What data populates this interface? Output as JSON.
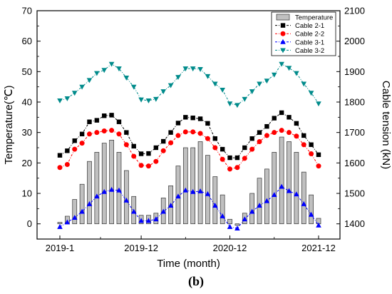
{
  "chart_data": {
    "type": "bar+line",
    "xlabel": "Time (month)",
    "ylabel_left": "Temperature(℃)",
    "ylabel_right": "Cable tension (kN)",
    "ylim_left": [
      -5,
      70
    ],
    "ylim_right": [
      1350,
      2100
    ],
    "yticks_left": [
      0,
      10,
      20,
      30,
      40,
      50,
      60,
      70
    ],
    "yticks_right": [
      1400,
      1500,
      1600,
      1700,
      1800,
      1900,
      2000,
      2100
    ],
    "x_tick_labels": [
      "2019-1",
      "2019-12",
      "2020-12",
      "2021-12"
    ],
    "months": [
      "2019-1",
      "2019-2",
      "2019-3",
      "2019-4",
      "2019-5",
      "2019-6",
      "2019-7",
      "2019-8",
      "2019-9",
      "2019-10",
      "2019-11",
      "2019-12",
      "2020-1",
      "2020-2",
      "2020-3",
      "2020-4",
      "2020-5",
      "2020-6",
      "2020-7",
      "2020-8",
      "2020-9",
      "2020-10",
      "2020-11",
      "2020-12",
      "2021-1",
      "2021-2",
      "2021-3",
      "2021-4",
      "2021-5",
      "2021-6",
      "2021-7",
      "2021-8",
      "2021-9",
      "2021-10",
      "2021-11",
      "2021-12"
    ],
    "legend": [
      "Temperature",
      "Cable 2-1",
      "Cable 2-2",
      "Cable 3-1",
      "Cable 3-2"
    ],
    "legend_position": "top-right",
    "temperature": {
      "name": "Temperature",
      "color": "#c0c0c0",
      "values": [
        0.5,
        2.5,
        8,
        13,
        20.5,
        23.5,
        26.5,
        27.5,
        23.5,
        17.5,
        9,
        2.8,
        2.8,
        3.5,
        8.5,
        12.5,
        19,
        25,
        25,
        27,
        22.5,
        15.5,
        9.5,
        1.5,
        -0.5,
        3.5,
        10,
        15,
        18,
        23.5,
        28.5,
        27,
        23.5,
        17,
        9.5,
        1.8
      ]
    },
    "series": [
      {
        "name": "Cable 2-1",
        "color": "#000000",
        "marker": "square",
        "values": [
          1625,
          1640,
          1673,
          1695,
          1735,
          1740,
          1755,
          1757,
          1735,
          1700,
          1655,
          1630,
          1631,
          1650,
          1671,
          1700,
          1731,
          1750,
          1748,
          1745,
          1730,
          1680,
          1645,
          1617,
          1617,
          1650,
          1680,
          1700,
          1720,
          1747,
          1765,
          1750,
          1730,
          1690,
          1660,
          1627
        ]
      },
      {
        "name": "Cable 2-2",
        "color": "#ff0000",
        "marker": "circle",
        "values": [
          1585,
          1595,
          1645,
          1665,
          1695,
          1700,
          1705,
          1707,
          1695,
          1660,
          1622,
          1592,
          1590,
          1605,
          1640,
          1666,
          1690,
          1702,
          1702,
          1697,
          1680,
          1650,
          1612,
          1580,
          1585,
          1615,
          1645,
          1670,
          1690,
          1700,
          1707,
          1700,
          1688,
          1660,
          1630,
          1590
        ]
      },
      {
        "name": "Cable 3-1",
        "color": "#0000ff",
        "marker": "triangle-up",
        "values": [
          1390,
          1405,
          1420,
          1440,
          1465,
          1490,
          1505,
          1512,
          1510,
          1477,
          1440,
          1410,
          1410,
          1415,
          1440,
          1460,
          1490,
          1510,
          1505,
          1507,
          1498,
          1460,
          1425,
          1390,
          1385,
          1415,
          1440,
          1460,
          1475,
          1495,
          1522,
          1508,
          1497,
          1465,
          1430,
          1395
        ]
      },
      {
        "name": "Cable 3-2",
        "color": "#008b8b",
        "marker": "triangle-down",
        "values": [
          1805,
          1812,
          1830,
          1850,
          1872,
          1895,
          1905,
          1925,
          1910,
          1880,
          1850,
          1808,
          1805,
          1810,
          1835,
          1855,
          1882,
          1910,
          1910,
          1908,
          1885,
          1860,
          1840,
          1795,
          1790,
          1810,
          1835,
          1860,
          1870,
          1890,
          1925,
          1912,
          1895,
          1860,
          1830,
          1795
        ]
      }
    ],
    "grid": false
  },
  "caption": "(b)"
}
